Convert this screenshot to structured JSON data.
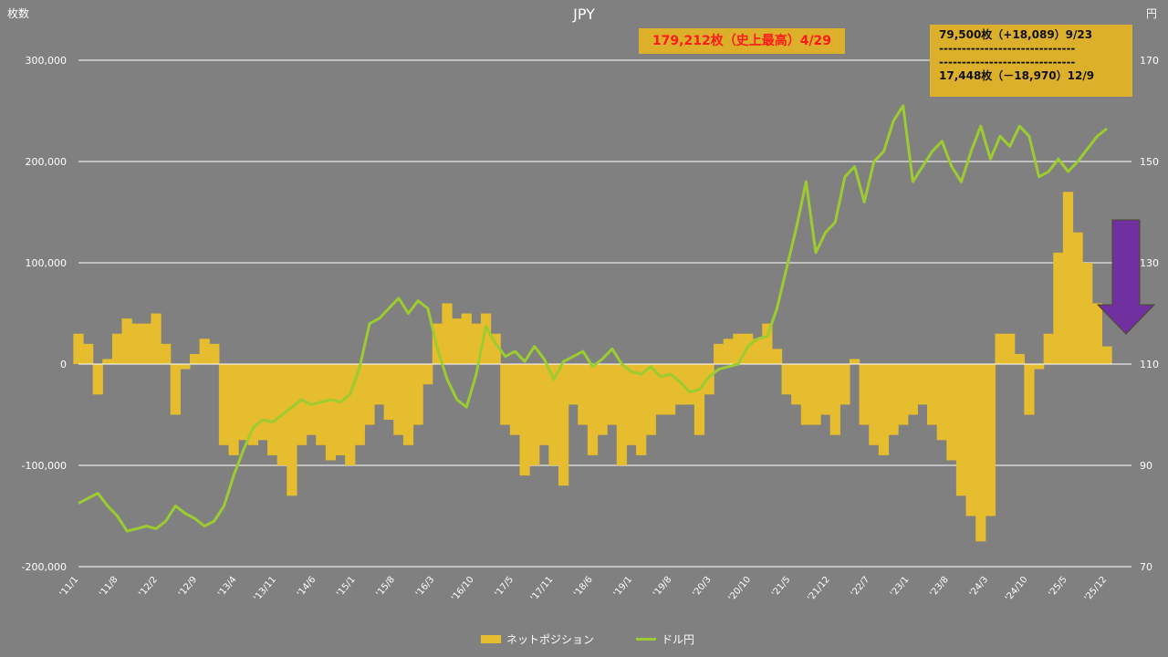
{
  "page": {
    "title": "JPY",
    "left_unit": "枚数",
    "right_unit": "円",
    "annotation_high": "179,212枚（史上最高）4/29",
    "annotation_box": {
      "line1": "79,500枚（+18,089）9/23",
      "line2": "------------------------------",
      "line3": "------------------------------",
      "line4": "17,448枚（－18,970）12/9"
    }
  },
  "colors": {
    "background": "#808080",
    "bars": "#e6bd2e",
    "line": "#9ccc2f",
    "arrow": "#7030a0",
    "box": "#dcb02a",
    "highlight_text": "#ff1a1a"
  },
  "chart_data": {
    "type": "bar+line",
    "title": "JPY",
    "left_axis": {
      "label": "枚数",
      "ylim": [
        -200000,
        300000
      ],
      "ticks": [
        300000,
        200000,
        100000,
        0,
        -100000,
        -200000
      ],
      "tick_labels": [
        "300,000",
        "200,000",
        "100,000",
        "0",
        "-100,000",
        "-200,000"
      ]
    },
    "right_axis": {
      "label": "円",
      "ylim": [
        70,
        170
      ],
      "ticks": [
        170,
        150,
        130,
        110,
        90,
        70
      ],
      "tick_labels": [
        "170",
        "150",
        "130",
        "110",
        "90",
        "70"
      ]
    },
    "x_tick_labels": [
      "'11/1",
      "'11/8",
      "'12/2",
      "'12/9",
      "'13/4",
      "'13/11",
      "'14/6",
      "'15/1",
      "'15/8",
      "'16/3",
      "'16/10",
      "'17/5",
      "'17/11",
      "'18/6",
      "'19/1",
      "'19/8",
      "'20/3",
      "'20/10",
      "'21/5",
      "'21/12",
      "'22/7",
      "'23/1",
      "'23/8",
      "'24/3",
      "'24/10",
      "'25/5",
      "'25/12"
    ],
    "grid": "horizontal",
    "legend_position": "bottom-center",
    "series": [
      {
        "name": "ネットポジション",
        "kind": "bar",
        "axis": "left",
        "points": [
          [
            0,
            30000
          ],
          [
            1,
            20000
          ],
          [
            2,
            -30000
          ],
          [
            3,
            5000
          ],
          [
            4,
            30000
          ],
          [
            5,
            45000
          ],
          [
            6,
            40000
          ],
          [
            7,
            40000
          ],
          [
            8,
            50000
          ],
          [
            9,
            20000
          ],
          [
            10,
            -50000
          ],
          [
            11,
            -5000
          ],
          [
            12,
            10000
          ],
          [
            13,
            25000
          ],
          [
            14,
            20000
          ],
          [
            15,
            -80000
          ],
          [
            16,
            -90000
          ],
          [
            17,
            -75000
          ],
          [
            18,
            -80000
          ],
          [
            19,
            -75000
          ],
          [
            20,
            -90000
          ],
          [
            21,
            -100000
          ],
          [
            22,
            -130000
          ],
          [
            23,
            -80000
          ],
          [
            24,
            -70000
          ],
          [
            25,
            -80000
          ],
          [
            26,
            -95000
          ],
          [
            27,
            -90000
          ],
          [
            28,
            -100000
          ],
          [
            29,
            -80000
          ],
          [
            30,
            -60000
          ],
          [
            31,
            -40000
          ],
          [
            32,
            -55000
          ],
          [
            33,
            -70000
          ],
          [
            34,
            -80000
          ],
          [
            35,
            -60000
          ],
          [
            36,
            -20000
          ],
          [
            37,
            40000
          ],
          [
            38,
            60000
          ],
          [
            39,
            45000
          ],
          [
            40,
            50000
          ],
          [
            41,
            40000
          ],
          [
            42,
            50000
          ],
          [
            43,
            30000
          ],
          [
            44,
            -60000
          ],
          [
            45,
            -70000
          ],
          [
            46,
            -110000
          ],
          [
            47,
            -100000
          ],
          [
            48,
            -80000
          ],
          [
            49,
            -100000
          ],
          [
            50,
            -120000
          ],
          [
            51,
            -40000
          ],
          [
            52,
            -60000
          ],
          [
            53,
            -90000
          ],
          [
            54,
            -70000
          ],
          [
            55,
            -60000
          ],
          [
            56,
            -100000
          ],
          [
            57,
            -80000
          ],
          [
            58,
            -90000
          ],
          [
            59,
            -70000
          ],
          [
            60,
            -50000
          ],
          [
            61,
            -50000
          ],
          [
            62,
            -40000
          ],
          [
            63,
            -40000
          ],
          [
            64,
            -70000
          ],
          [
            65,
            -30000
          ],
          [
            66,
            20000
          ],
          [
            67,
            25000
          ],
          [
            68,
            30000
          ],
          [
            69,
            30000
          ],
          [
            70,
            25000
          ],
          [
            71,
            40000
          ],
          [
            72,
            15000
          ],
          [
            73,
            -30000
          ],
          [
            74,
            -40000
          ],
          [
            75,
            -60000
          ],
          [
            76,
            -60000
          ],
          [
            77,
            -50000
          ],
          [
            78,
            -70000
          ],
          [
            79,
            -40000
          ],
          [
            80,
            5000
          ],
          [
            81,
            -60000
          ],
          [
            82,
            -80000
          ],
          [
            83,
            -90000
          ],
          [
            84,
            -70000
          ],
          [
            85,
            -60000
          ],
          [
            86,
            -50000
          ],
          [
            87,
            -40000
          ],
          [
            88,
            -60000
          ],
          [
            89,
            -75000
          ],
          [
            90,
            -95000
          ],
          [
            91,
            -130000
          ],
          [
            92,
            -150000
          ],
          [
            93,
            -175000
          ],
          [
            94,
            -150000
          ],
          [
            95,
            30000
          ],
          [
            96,
            30000
          ],
          [
            97,
            10000
          ],
          [
            98,
            -50000
          ],
          [
            99,
            -5000
          ],
          [
            100,
            30000
          ],
          [
            101,
            110000
          ],
          [
            102,
            170000
          ],
          [
            103,
            130000
          ],
          [
            104,
            100000
          ],
          [
            105,
            60000
          ],
          [
            106,
            17448
          ]
        ]
      },
      {
        "name": "ドル円",
        "kind": "line",
        "axis": "right",
        "points": [
          [
            0,
            82.5
          ],
          [
            1,
            83.5
          ],
          [
            2,
            84.5
          ],
          [
            3,
            82.0
          ],
          [
            4,
            80.0
          ],
          [
            5,
            77.0
          ],
          [
            6,
            77.5
          ],
          [
            7,
            78.0
          ],
          [
            8,
            77.5
          ],
          [
            9,
            79.0
          ],
          [
            10,
            82.0
          ],
          [
            11,
            80.5
          ],
          [
            12,
            79.5
          ],
          [
            13,
            78.0
          ],
          [
            14,
            79.0
          ],
          [
            15,
            82.0
          ],
          [
            16,
            88.0
          ],
          [
            17,
            93.0
          ],
          [
            18,
            97.5
          ],
          [
            19,
            99.0
          ],
          [
            20,
            98.5
          ],
          [
            21,
            100.0
          ],
          [
            22,
            101.5
          ],
          [
            23,
            103.0
          ],
          [
            24,
            102.0
          ],
          [
            25,
            102.5
          ],
          [
            26,
            103.0
          ],
          [
            27,
            102.5
          ],
          [
            28,
            104.0
          ],
          [
            29,
            109.5
          ],
          [
            30,
            118.0
          ],
          [
            31,
            119.0
          ],
          [
            32,
            121.0
          ],
          [
            33,
            123.0
          ],
          [
            34,
            120.0
          ],
          [
            35,
            122.5
          ],
          [
            36,
            121.0
          ],
          [
            37,
            113.0
          ],
          [
            38,
            107.0
          ],
          [
            39,
            103.0
          ],
          [
            40,
            101.5
          ],
          [
            41,
            108.0
          ],
          [
            42,
            117.5
          ],
          [
            43,
            114.0
          ],
          [
            44,
            111.5
          ],
          [
            45,
            112.5
          ],
          [
            46,
            110.5
          ],
          [
            47,
            113.5
          ],
          [
            48,
            111.0
          ],
          [
            49,
            107.0
          ],
          [
            50,
            110.5
          ],
          [
            51,
            111.5
          ],
          [
            52,
            112.5
          ],
          [
            53,
            109.5
          ],
          [
            54,
            111.0
          ],
          [
            55,
            113.0
          ],
          [
            56,
            110.0
          ],
          [
            57,
            108.5
          ],
          [
            58,
            108.0
          ],
          [
            59,
            109.5
          ],
          [
            60,
            107.5
          ],
          [
            61,
            108.0
          ],
          [
            62,
            106.5
          ],
          [
            63,
            104.5
          ],
          [
            64,
            105.0
          ],
          [
            65,
            107.5
          ],
          [
            66,
            109.0
          ],
          [
            67,
            109.5
          ],
          [
            68,
            110.0
          ],
          [
            69,
            113.5
          ],
          [
            70,
            115.0
          ],
          [
            71,
            115.5
          ],
          [
            72,
            121.0
          ],
          [
            73,
            129.0
          ],
          [
            74,
            137.0
          ],
          [
            75,
            146.0
          ],
          [
            76,
            132.0
          ],
          [
            77,
            136.0
          ],
          [
            78,
            138.0
          ],
          [
            79,
            147.0
          ],
          [
            80,
            149.0
          ],
          [
            81,
            142.0
          ],
          [
            82,
            150.0
          ],
          [
            83,
            152.0
          ],
          [
            84,
            158.0
          ],
          [
            85,
            161.0
          ],
          [
            86,
            146.0
          ],
          [
            87,
            149.0
          ],
          [
            88,
            152.0
          ],
          [
            89,
            154.0
          ],
          [
            90,
            149.0
          ],
          [
            91,
            146.0
          ],
          [
            92,
            152.0
          ],
          [
            93,
            157.0
          ],
          [
            94,
            150.5
          ],
          [
            95,
            155.0
          ],
          [
            96,
            153.0
          ],
          [
            97,
            157.0
          ],
          [
            98,
            155.0
          ],
          [
            99,
            147.0
          ],
          [
            100,
            148.0
          ],
          [
            101,
            150.5
          ],
          [
            102,
            148.0
          ],
          [
            103,
            150.0
          ],
          [
            104,
            152.5
          ],
          [
            105,
            155.0
          ],
          [
            106,
            156.5
          ]
        ]
      }
    ],
    "x_range": [
      0,
      106
    ]
  },
  "legend": {
    "bar_label": "ネットポジション",
    "line_label": "ドル円"
  }
}
